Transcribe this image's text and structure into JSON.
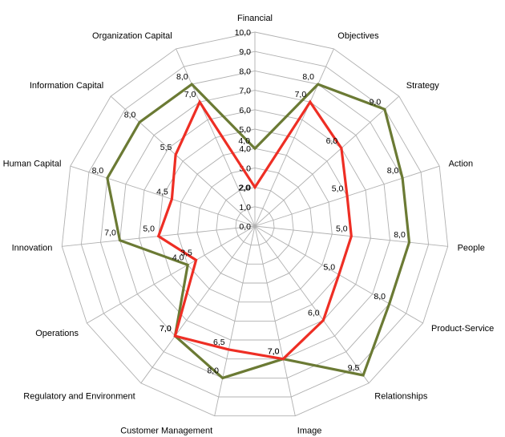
{
  "chart_data": {
    "type": "radar",
    "title": "",
    "axes": [
      "Financial",
      "Objectives",
      "Strategy",
      "Action",
      "People",
      "Product-Service",
      "Relationships",
      "Image",
      "Customer Management",
      "Regulatory and Environment",
      "Operations",
      "Innovation",
      "Human Capital",
      "Information Capital",
      "Organization Capital"
    ],
    "rlim": [
      0,
      10
    ],
    "ticks": [
      "0,0",
      "1,0",
      "2,0",
      "3,0",
      "4,0",
      "5,0",
      "6,0",
      "7,0",
      "8,0",
      "9,0",
      "10,0"
    ],
    "grid": true,
    "legend": "none",
    "series": [
      {
        "color": "#6b7a34",
        "values": [
          4.0,
          8.0,
          9.0,
          8.0,
          8.0,
          8.0,
          9.5,
          7.0,
          8.0,
          7.0,
          4.0,
          7.0,
          8.0,
          8.0,
          8.0
        ],
        "labels": [
          "4,0",
          "8,0",
          "9,0",
          "8,0",
          "8,0",
          "8,0",
          "9,5",
          "7,0",
          "8,0",
          "7,0",
          "4,0",
          "7,0",
          "8,0",
          "8,0",
          "8,0"
        ]
      },
      {
        "color": "#ee2e24",
        "values": [
          2.0,
          7.0,
          6.0,
          5.0,
          5.0,
          5.0,
          6.0,
          7.0,
          6.5,
          7.0,
          3.5,
          5.0,
          4.5,
          5.5,
          7.0
        ],
        "labels": [
          "2,0",
          "7,0",
          "6,0",
          "5,0",
          "5,0",
          "5,0",
          "6,0",
          "7,0",
          "6,5",
          "7,0",
          "3,5",
          "5,0",
          "4,5",
          "5,5",
          "7,0"
        ]
      }
    ]
  }
}
